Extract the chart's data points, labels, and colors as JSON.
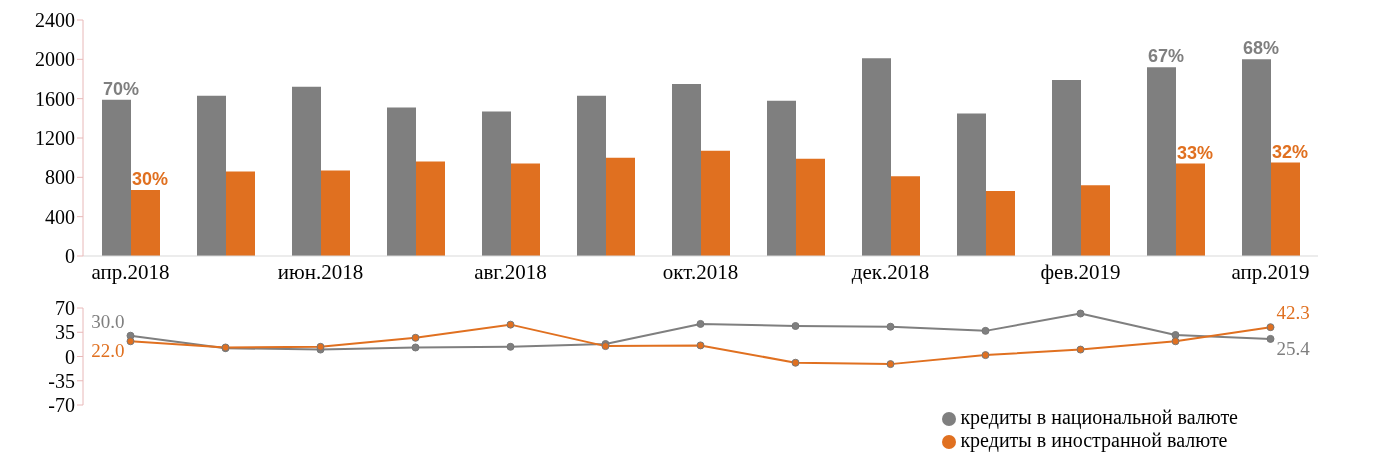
{
  "chart_data": [
    {
      "type": "bar",
      "categories": [
        "апр.2018",
        null,
        "июн.2018",
        null,
        "авг.2018",
        null,
        "окт.2018",
        null,
        "дек.2018",
        null,
        "фев.2019",
        null,
        "апр.2019"
      ],
      "ylim": [
        0,
        2400
      ],
      "yticks": [
        0,
        400,
        800,
        1200,
        1600,
        2000,
        2400
      ],
      "grid": false,
      "series": [
        {
          "color": "#7f7f7f",
          "values": [
            1590,
            1630,
            1720,
            1510,
            1470,
            1630,
            1750,
            1580,
            2010,
            1450,
            1790,
            1920,
            2000
          ]
        },
        {
          "color": "#e07020",
          "values": [
            670,
            860,
            870,
            960,
            940,
            1000,
            1070,
            990,
            810,
            660,
            720,
            940,
            950
          ]
        }
      ],
      "annotations": [
        {
          "text": "70%",
          "x": "апр.2018",
          "y": 1590
        },
        {
          "text": "67%",
          "y": 1920
        },
        {
          "text": "68%",
          "x": "апр.2019",
          "y": 2000
        },
        {
          "text": "30%",
          "x": "апр.2018",
          "y": 670
        },
        {
          "text": "33%",
          "y": 940
        },
        {
          "text": "32%",
          "x": "апр.2019",
          "y": 950
        }
      ]
    },
    {
      "type": "line",
      "categories": [
        null,
        null,
        null,
        null,
        null,
        null,
        null,
        null,
        null,
        null,
        null,
        null,
        null
      ],
      "ylim": [
        -70,
        70
      ],
      "yticks": [
        -70,
        -35,
        0,
        35,
        70
      ],
      "grid": false,
      "tick_labels": "y",
      "marker": "circle",
      "legend": "bottom right",
      "series": [
        {
          "name": "кредиты в национальной валюте",
          "color": "#7f7f7f",
          "values": [
            30.0,
            12,
            10,
            13,
            14,
            18,
            47,
            44,
            43,
            37,
            62,
            31,
            25.4
          ],
          "value_labels": [
            "30.0",
            null,
            null,
            null,
            null,
            null,
            null,
            null,
            null,
            null,
            null,
            null,
            "25.4"
          ]
        },
        {
          "name": "кредиты в иностранной валюте",
          "color": "#e07020",
          "values": [
            22.0,
            13,
            14,
            27,
            46,
            15,
            16,
            -9,
            -11,
            2,
            10,
            22,
            42.3
          ],
          "value_labels": [
            "22.0",
            null,
            null,
            null,
            null,
            null,
            null,
            null,
            null,
            null,
            null,
            null,
            "42.3"
          ]
        }
      ]
    }
  ]
}
